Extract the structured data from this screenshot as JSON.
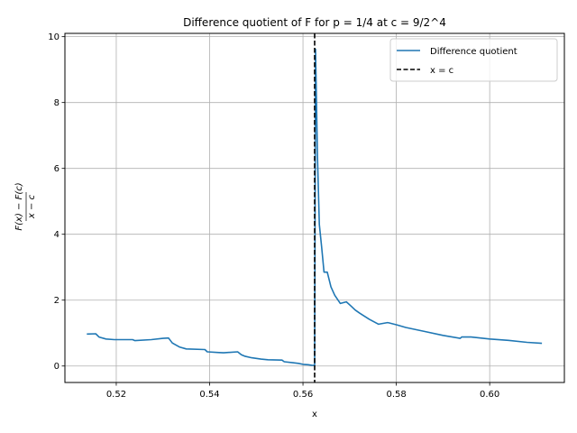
{
  "chart_data": {
    "type": "line",
    "title": "Difference quotient of F for p = 1/4 at c = 9/2^4",
    "xlabel": "x",
    "ylabel": "(F(x) − F(c)) / (x − c)",
    "xlim": [
      0.509,
      0.616
    ],
    "ylim": [
      -0.5,
      10.1
    ],
    "xticks": [
      0.52,
      0.54,
      0.56,
      0.58,
      0.6
    ],
    "xtick_labels": [
      "0.52",
      "0.54",
      "0.56",
      "0.58",
      "0.60"
    ],
    "yticks": [
      0,
      2,
      4,
      6,
      8,
      10
    ],
    "ytick_labels": [
      "0",
      "2",
      "4",
      "6",
      "8",
      "10"
    ],
    "grid": true,
    "legend_position": "top-right",
    "vline": {
      "name": "x = c",
      "x": 0.5625,
      "color": "#000000",
      "style": "dashed"
    },
    "series": [
      {
        "name": "Difference quotient",
        "color": "#1f77b4",
        "x": [
          0.5137,
          0.5156,
          0.5163,
          0.5178,
          0.5196,
          0.5235,
          0.524,
          0.5275,
          0.53,
          0.5312,
          0.532,
          0.5335,
          0.535,
          0.539,
          0.5395,
          0.542,
          0.543,
          0.546,
          0.5468,
          0.5475,
          0.549,
          0.551,
          0.5525,
          0.5555,
          0.556,
          0.5578,
          0.559,
          0.56,
          0.5611,
          0.562,
          0.5625,
          0.5627,
          0.5631,
          0.5635,
          0.564,
          0.5645,
          0.5652,
          0.566,
          0.5668,
          0.568,
          0.5693,
          0.5703,
          0.5712,
          0.5722,
          0.5742,
          0.5762,
          0.5781,
          0.5784,
          0.5801,
          0.582,
          0.586,
          0.59,
          0.5937,
          0.594,
          0.596,
          0.6,
          0.604,
          0.608,
          0.6112
        ],
        "y": [
          0.97,
          0.98,
          0.88,
          0.82,
          0.8,
          0.8,
          0.77,
          0.8,
          0.84,
          0.85,
          0.7,
          0.58,
          0.52,
          0.5,
          0.43,
          0.41,
          0.4,
          0.43,
          0.34,
          0.3,
          0.25,
          0.21,
          0.19,
          0.18,
          0.13,
          0.1,
          0.08,
          0.05,
          0.04,
          0.02,
          0.02,
          9.62,
          6.4,
          4.3,
          3.6,
          2.85,
          2.85,
          2.4,
          2.15,
          1.9,
          1.95,
          1.82,
          1.7,
          1.6,
          1.42,
          1.27,
          1.32,
          1.31,
          1.25,
          1.17,
          1.05,
          0.93,
          0.84,
          0.88,
          0.88,
          0.82,
          0.78,
          0.72,
          0.69
        ]
      }
    ]
  }
}
